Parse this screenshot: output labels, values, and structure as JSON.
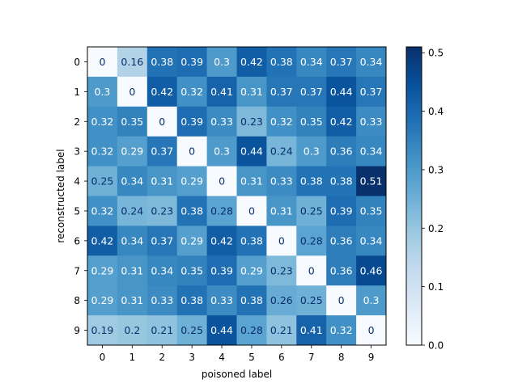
{
  "chart_data": {
    "type": "heatmap",
    "title": "",
    "xlabel": "poisoned label",
    "ylabel": "reconstructed label",
    "x_categories": [
      "0",
      "1",
      "2",
      "3",
      "4",
      "5",
      "6",
      "7",
      "8",
      "9"
    ],
    "y_categories": [
      "0",
      "1",
      "2",
      "3",
      "4",
      "5",
      "6",
      "7",
      "8",
      "9"
    ],
    "values": [
      [
        0,
        0.16,
        0.38,
        0.39,
        0.3,
        0.42,
        0.38,
        0.34,
        0.37,
        0.34
      ],
      [
        0.3,
        0,
        0.42,
        0.32,
        0.41,
        0.31,
        0.37,
        0.37,
        0.44,
        0.37
      ],
      [
        0.32,
        0.35,
        0,
        0.39,
        0.33,
        0.23,
        0.32,
        0.35,
        0.42,
        0.33
      ],
      [
        0.32,
        0.29,
        0.37,
        0,
        0.3,
        0.44,
        0.24,
        0.3,
        0.36,
        0.34
      ],
      [
        0.25,
        0.34,
        0.31,
        0.29,
        0,
        0.31,
        0.33,
        0.38,
        0.38,
        0.51
      ],
      [
        0.32,
        0.24,
        0.23,
        0.38,
        0.28,
        0,
        0.31,
        0.25,
        0.39,
        0.35
      ],
      [
        0.42,
        0.34,
        0.37,
        0.29,
        0.42,
        0.38,
        0,
        0.28,
        0.36,
        0.34
      ],
      [
        0.29,
        0.31,
        0.34,
        0.35,
        0.39,
        0.29,
        0.23,
        0,
        0.36,
        0.46
      ],
      [
        0.29,
        0.31,
        0.33,
        0.38,
        0.33,
        0.38,
        0.26,
        0.25,
        0,
        0.3
      ],
      [
        0.19,
        0.2,
        0.21,
        0.25,
        0.44,
        0.28,
        0.21,
        0.41,
        0.32,
        0
      ]
    ],
    "colorbar": {
      "min": 0.0,
      "max": 0.51,
      "ticks": [
        0.0,
        0.1,
        0.2,
        0.3,
        0.4,
        0.5
      ],
      "tick_labels": [
        "0.0",
        "0.1",
        "0.2",
        "0.3",
        "0.4",
        "0.5"
      ]
    },
    "colormap": "Blues",
    "colormap_stops": [
      "#f7fbff",
      "#deebf7",
      "#c6dbef",
      "#9ecae1",
      "#6baed6",
      "#4292c6",
      "#2171b5",
      "#08519c",
      "#08306b"
    ],
    "legend": "colorbar-right",
    "grid": false
  }
}
